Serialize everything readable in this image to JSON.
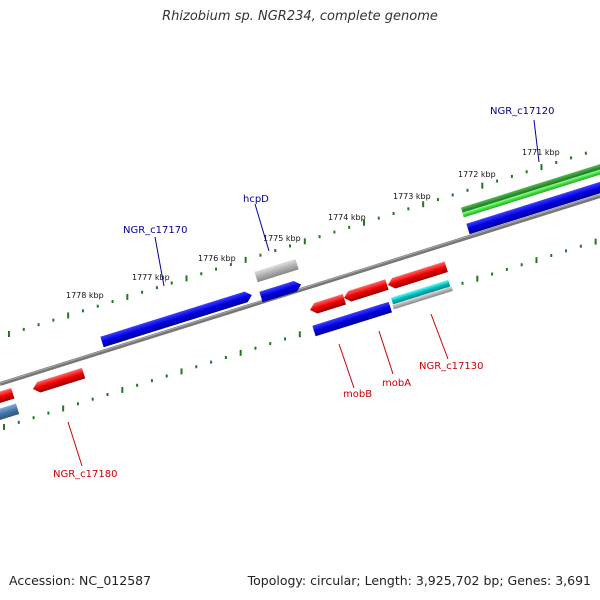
{
  "title": "Rhizobium sp. NGR234, complete genome",
  "footer": {
    "accession": "Accession: NC_012587",
    "summary": "Topology: circular; Length: 3,925,702 bp; Genes: 3,691"
  },
  "colors": {
    "forward_gene": "#0000dd",
    "reverse_gene": "#ee0000",
    "pseudo_gene": "#aaaaaa",
    "rna_gene": "#33aa33",
    "teal_gene": "#00bbbb",
    "steel_gene": "#4477aa",
    "backbone": "#777777",
    "ticks": "#227722",
    "label_forward": "#000099",
    "label_reverse": "#cc0000"
  },
  "ticks": [
    {
      "label": "1771 kbp"
    },
    {
      "label": "1772 kbp"
    },
    {
      "label": "1773 kbp"
    },
    {
      "label": "1774 kbp"
    },
    {
      "label": "1775 kbp"
    },
    {
      "label": "1776 kbp"
    },
    {
      "label": "1777 kbp"
    },
    {
      "label": "1778 kbp"
    }
  ],
  "gene_labels": [
    {
      "name": "NGR_c17120",
      "strand": "forward"
    },
    {
      "name": "hcpD",
      "strand": "forward"
    },
    {
      "name": "NGR_c17170",
      "strand": "forward"
    },
    {
      "name": "NGR_c17130",
      "strand": "reverse"
    },
    {
      "name": "mobA",
      "strand": "reverse"
    },
    {
      "name": "mobB",
      "strand": "reverse"
    },
    {
      "name": "NGR_c17180",
      "strand": "reverse"
    }
  ]
}
